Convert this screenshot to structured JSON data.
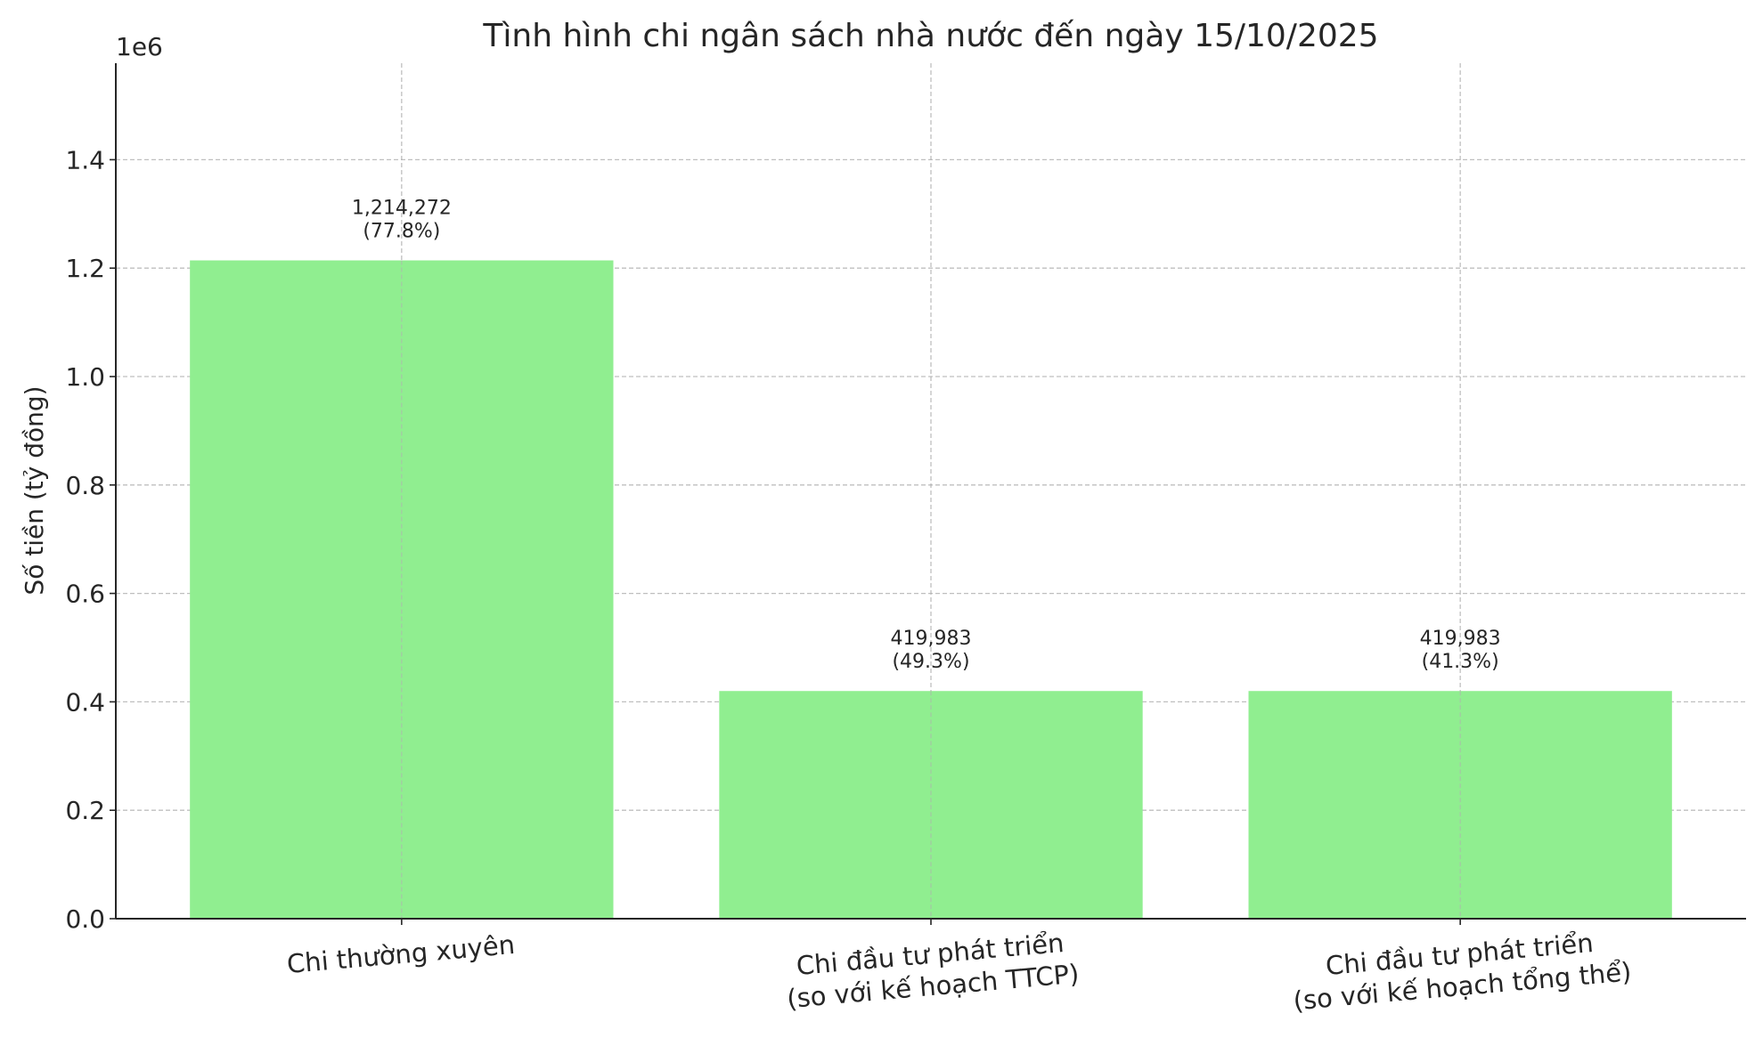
{
  "chart_data": {
    "type": "bar",
    "title": "Tình hình chi ngân sách nhà nước đến ngày 15/10/2025",
    "xlabel": "",
    "ylabel": "Số tiền (tỷ đồng)",
    "y_offset_label": "1e6",
    "categories": [
      [
        "Chi thường xuyên"
      ],
      [
        "Chi đầu tư phát triển",
        "(so với kế hoạch TTCP)"
      ],
      [
        "Chi đầu tư phát triển",
        "(so với kế hoạch tổng thể)"
      ]
    ],
    "values": [
      1214272,
      419983,
      419983
    ],
    "data_labels": [
      [
        "1,214,272",
        "(77.8%)"
      ],
      [
        "419,983",
        "(49.3%)"
      ],
      [
        "419,983",
        "(41.3%)"
      ]
    ],
    "ylim": [
      0,
      1578000
    ],
    "yticks": [
      0,
      200000,
      400000,
      600000,
      800000,
      1000000,
      1200000,
      1400000
    ],
    "ytick_labels": [
      "0.0",
      "0.2",
      "0.4",
      "0.6",
      "0.8",
      "1.0",
      "1.2",
      "1.4"
    ],
    "grid": true,
    "bar_color": "#90ee90"
  }
}
